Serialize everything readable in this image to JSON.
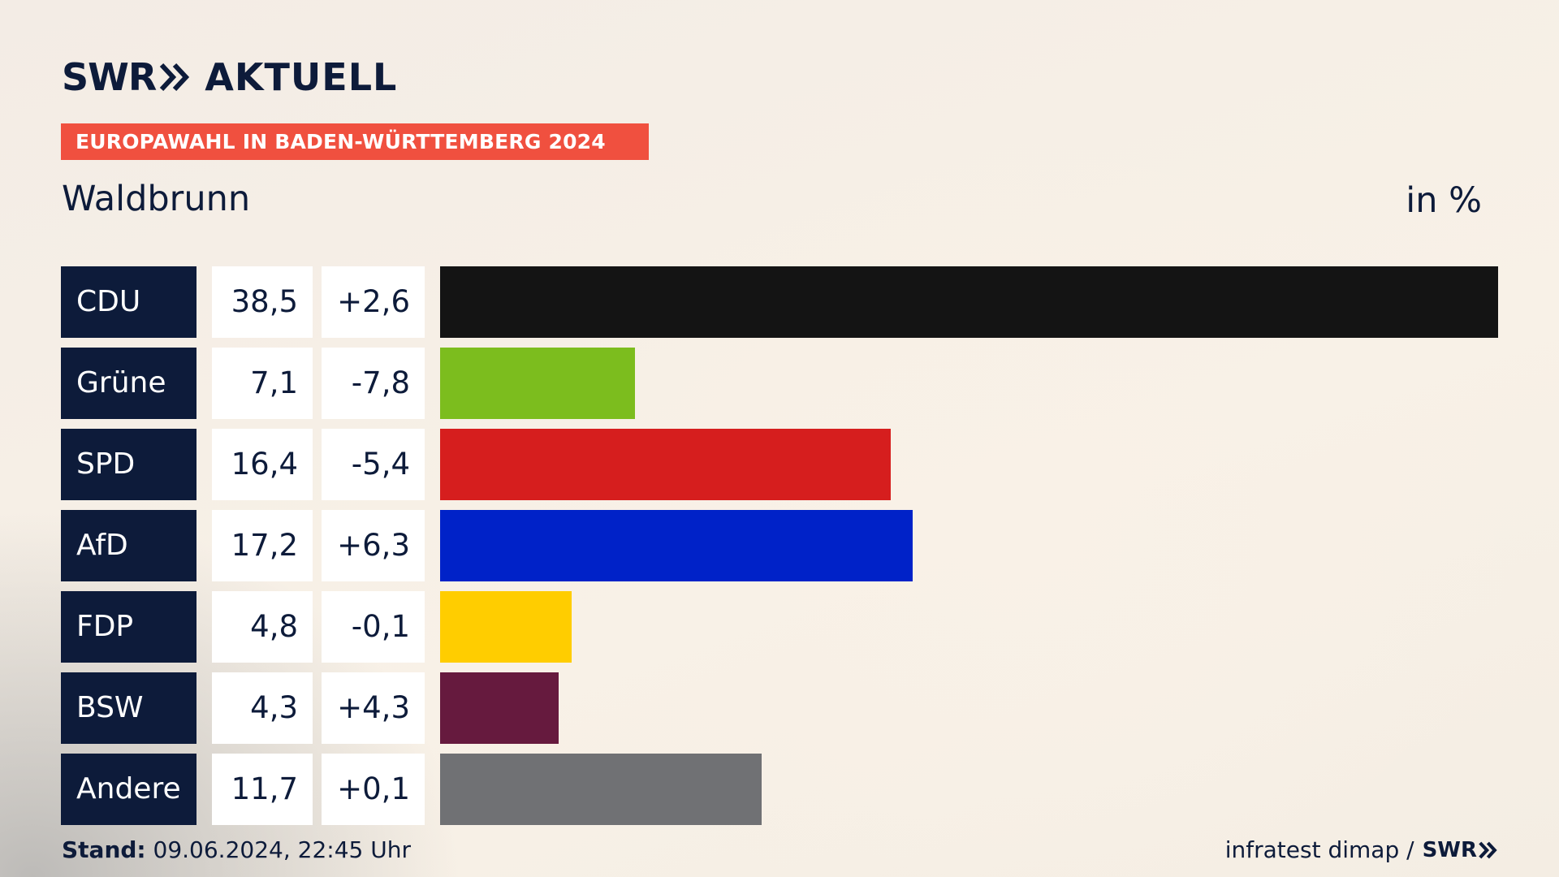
{
  "header": {
    "logo_left": "SWR",
    "logo_right": "AKTUELL",
    "banner": "EUROPAWAHL IN BADEN-WÜRTTEMBERG 2024",
    "place": "Waldbrunn",
    "unit": "in %"
  },
  "footer": {
    "stand_label": "Stand:",
    "stand_value": " 09.06.2024, 22:45 Uhr",
    "source": "infratest dimap /",
    "source_logo": "SWR"
  },
  "chart_data": {
    "type": "bar",
    "categories": [
      "CDU",
      "Grüne",
      "SPD",
      "AfD",
      "FDP",
      "BSW",
      "Andere"
    ],
    "values": [
      38.5,
      7.1,
      16.4,
      17.2,
      4.8,
      4.3,
      11.7
    ],
    "value_labels": [
      "38,5",
      "7,1",
      "16,4",
      "17,2",
      "4,8",
      "4,3",
      "11,7"
    ],
    "changes": [
      "+2,6",
      "-7,8",
      "-5,4",
      "+6,3",
      "-0,1",
      "+4,3",
      "+0,1"
    ],
    "colors": [
      "#141414",
      "#7cbd1e",
      "#d61e1e",
      "#0022c8",
      "#ffcd00",
      "#661a3e",
      "#707174"
    ],
    "xlim": [
      0,
      38.5
    ]
  }
}
